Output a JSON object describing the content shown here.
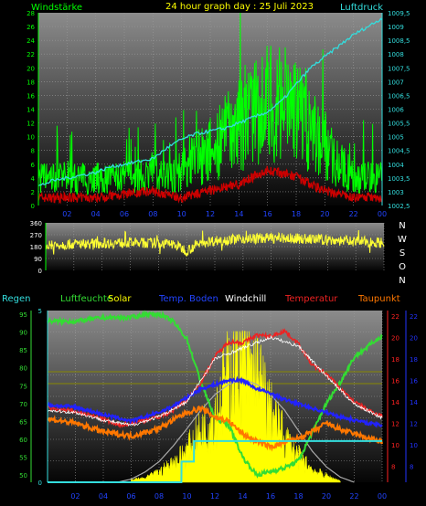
{
  "header": {
    "left_label": "Windstärke",
    "title": "24 hour graph day : 25 Juli 2023",
    "right_label": "Luftdruck"
  },
  "colors": {
    "background": "#000000",
    "plot_top": "#8c8c8c",
    "plot_bottom": "#050505",
    "wind": "#00ff00",
    "gust": "#cc0000",
    "pressure": "#33dddd",
    "direction": "#ffff33",
    "axis_left": "#00ff00",
    "axis_right_pressure": "#33dddd",
    "axis_right_temp": "#ff2222",
    "axis_right_dew": "#2233ff",
    "humidity": "#33dd33",
    "temperature": "#ee2222",
    "ground_temp": "#2222ff",
    "windchill": "#ffffff",
    "dewpoint": "#ff7700",
    "rain": "#33dddd",
    "solar": "#ffff00",
    "solar_max": "#aaaaaa",
    "solar_ref": "#888800"
  },
  "chart_data": [
    {
      "type": "line",
      "title": "24 hour graph day : 25 Juli 2023",
      "x_ticks": [
        "02",
        "04",
        "06",
        "08",
        "10",
        "12",
        "14",
        "16",
        "18",
        "20",
        "22",
        "00"
      ],
      "series": [
        {
          "name": "Windstärke",
          "hours": [
            0,
            1,
            2,
            3,
            4,
            5,
            6,
            7,
            8,
            9,
            10,
            11,
            12,
            13,
            14,
            15,
            16,
            17,
            18,
            19,
            20,
            21,
            22,
            23,
            24
          ],
          "values": [
            4,
            4,
            4,
            4,
            4,
            4,
            4,
            4,
            5,
            4,
            5,
            7,
            8,
            10,
            11,
            13,
            15,
            15,
            14,
            11,
            9,
            6,
            4,
            4,
            4
          ]
        },
        {
          "name": "Windstärke min",
          "hours": [
            0,
            2,
            4,
            6,
            8,
            10,
            12,
            14,
            16,
            18,
            20,
            22,
            24
          ],
          "values": [
            1,
            1,
            1,
            1.5,
            2,
            1,
            2,
            3,
            5,
            4,
            2,
            1,
            1
          ]
        },
        {
          "name": "Luftdruck",
          "hours": [
            0,
            1,
            2,
            3,
            4,
            5,
            6,
            7,
            8,
            9,
            10,
            11,
            12,
            13,
            14,
            15,
            16,
            17,
            18,
            19,
            20,
            21,
            22,
            23,
            24
          ],
          "values": [
            1003.2,
            1003.4,
            1003.5,
            1003.6,
            1003.7,
            1003.9,
            1004.0,
            1004.1,
            1004.2,
            1004.6,
            1004.9,
            1005.1,
            1005.2,
            1005.3,
            1005.5,
            1005.7,
            1005.9,
            1006.3,
            1006.9,
            1007.5,
            1007.9,
            1008.3,
            1008.7,
            1009.0,
            1009.3
          ]
        }
      ],
      "left_axis": {
        "label": "Windstärke",
        "ticks": [
          "0",
          "2",
          "4",
          "6",
          "8",
          "10",
          "12",
          "14",
          "16",
          "18",
          "20",
          "22",
          "24",
          "26",
          "28"
        ],
        "ylim": [
          0,
          28
        ]
      },
      "right_axis": {
        "label": "Luftdruck",
        "ticks": [
          "1002,5",
          "1003",
          "1003,5",
          "1004",
          "1004,5",
          "1005",
          "1005,5",
          "1006",
          "1006,5",
          "1007",
          "1007,5",
          "1008",
          "1008,5",
          "1009",
          "1009,5"
        ],
        "ylim": [
          1002.5,
          1009.5
        ]
      }
    },
    {
      "type": "line",
      "left_ticks": [
        "0",
        "90",
        "180",
        "270",
        "360"
      ],
      "right_labels": [
        "N",
        "W",
        "S",
        "O",
        "N"
      ],
      "ylim": [
        0,
        360
      ],
      "series": [
        {
          "name": "Windrichtung",
          "hours": [
            0,
            2,
            4,
            6,
            8,
            9,
            10,
            11,
            12,
            14,
            16,
            18,
            20,
            22,
            24
          ],
          "values": [
            190,
            200,
            205,
            210,
            205,
            200,
            150,
            210,
            225,
            240,
            245,
            240,
            230,
            220,
            210
          ]
        }
      ]
    },
    {
      "type": "line",
      "legend": [
        "Regen",
        "Luftfeuchte",
        "Solar",
        "Temp. Boden",
        "Windchill",
        "Temperatur",
        "Taupunkt"
      ],
      "left_axis": {
        "label": "Regen",
        "ticks": [
          "0",
          "5"
        ],
        "ylim": [
          0,
          5
        ]
      },
      "humidity_axis": {
        "ticks": [
          "50",
          "55",
          "60",
          "65",
          "70",
          "75",
          "80",
          "85",
          "90",
          "95"
        ],
        "ylim": [
          48,
          96
        ]
      },
      "temp_axis": {
        "ticks": [
          "8",
          "10",
          "12",
          "14",
          "16",
          "18",
          "20",
          "22"
        ],
        "ylim": [
          6.5,
          22.5
        ]
      },
      "dew_axis": {
        "ticks": [
          "8",
          "10",
          "12",
          "14",
          "16",
          "18",
          "20",
          "22"
        ],
        "ylim": [
          6.5,
          22.5
        ]
      },
      "series": [
        {
          "name": "Luftfeuchte",
          "hours": [
            0,
            2,
            4,
            6,
            7,
            8,
            9,
            10,
            11,
            12,
            13,
            14,
            15,
            16,
            17,
            18,
            19,
            20,
            21,
            22,
            23,
            24
          ],
          "values": [
            93,
            93,
            94,
            94,
            95,
            95,
            93,
            88,
            76,
            66,
            64,
            55,
            50,
            51,
            52,
            54,
            62,
            70,
            76,
            83,
            86,
            89
          ]
        },
        {
          "name": "Temperatur",
          "hours": [
            0,
            2,
            4,
            5,
            6,
            8,
            9,
            10,
            11,
            12,
            13,
            14,
            15,
            16,
            17,
            18,
            19,
            20,
            21,
            22,
            23,
            24
          ],
          "values": [
            13.4,
            13.1,
            12.4,
            11.8,
            12.0,
            12.6,
            13.2,
            14.2,
            15.8,
            18.2,
            19.6,
            19.5,
            20.2,
            20.1,
            20.6,
            19.4,
            17.4,
            16.6,
            15.2,
            14.0,
            13.2,
            12.7
          ]
        },
        {
          "name": "Taupunkt",
          "hours": [
            0,
            2,
            4,
            6,
            8,
            9,
            10,
            11,
            12,
            13,
            14,
            15,
            16,
            17,
            18,
            19,
            20,
            21,
            22,
            23,
            24
          ],
          "values": [
            12.4,
            12.0,
            11.2,
            10.8,
            11.5,
            12.3,
            13.0,
            13.4,
            12.6,
            12.2,
            11.0,
            10.3,
            9.8,
            10.2,
            10.6,
            11.2,
            12.0,
            11.4,
            11.0,
            10.6,
            10.3
          ]
        },
        {
          "name": "Temp. Boden",
          "hours": [
            0,
            2,
            4,
            6,
            8,
            9,
            10,
            11,
            12,
            13,
            14,
            15,
            16,
            17,
            18,
            19,
            20,
            21,
            22,
            23,
            24
          ],
          "values": [
            13.7,
            13.5,
            12.8,
            12.2,
            13.0,
            13.6,
            14.4,
            15.2,
            15.6,
            16.0,
            16.0,
            15.2,
            14.8,
            14.2,
            13.8,
            13.4,
            13.0,
            12.6,
            12.3,
            12.0,
            11.8
          ]
        },
        {
          "name": "Windchill",
          "hours": [
            0,
            2,
            4,
            6,
            8,
            10,
            12,
            14,
            16,
            18,
            20,
            22,
            24
          ],
          "values": [
            13.2,
            13.0,
            12.3,
            11.8,
            12.6,
            14.0,
            18.0,
            19.0,
            20.0,
            19.2,
            16.4,
            13.8,
            12.5
          ]
        },
        {
          "name": "Regen",
          "hours": [
            0,
            9.6,
            9.61,
            10.5,
            10.51,
            19.5,
            19.51,
            24
          ],
          "values": [
            0,
            0,
            0.6,
            0.6,
            1.2,
            1.2,
            1.2,
            1.2
          ]
        },
        {
          "name": "Solar",
          "hours": [
            6,
            7,
            8,
            9,
            10,
            11,
            12,
            12.5,
            13,
            13.5,
            14,
            14.5,
            15,
            16,
            17,
            18,
            19,
            20,
            21
          ],
          "values": [
            0.02,
            0.03,
            0.08,
            0.15,
            0.25,
            0.4,
            0.55,
            0.7,
            0.85,
            0.9,
            0.95,
            0.9,
            0.85,
            0.55,
            0.35,
            0.2,
            0.1,
            0.05,
            0.01
          ]
        },
        {
          "name": "Solar max",
          "hours": [
            5,
            6,
            7,
            8,
            9,
            10,
            11,
            12,
            13,
            14,
            15,
            16,
            17,
            18,
            19,
            20,
            21,
            22
          ],
          "values": [
            0,
            0.03,
            0.1,
            0.2,
            0.35,
            0.52,
            0.7,
            0.85,
            0.95,
            1.0,
            0.95,
            0.85,
            0.7,
            0.5,
            0.3,
            0.15,
            0.05,
            0
          ]
        }
      ],
      "x_ticks": [
        "02",
        "04",
        "06",
        "08",
        "10",
        "12",
        "14",
        "16",
        "18",
        "20",
        "22",
        "00"
      ]
    }
  ]
}
